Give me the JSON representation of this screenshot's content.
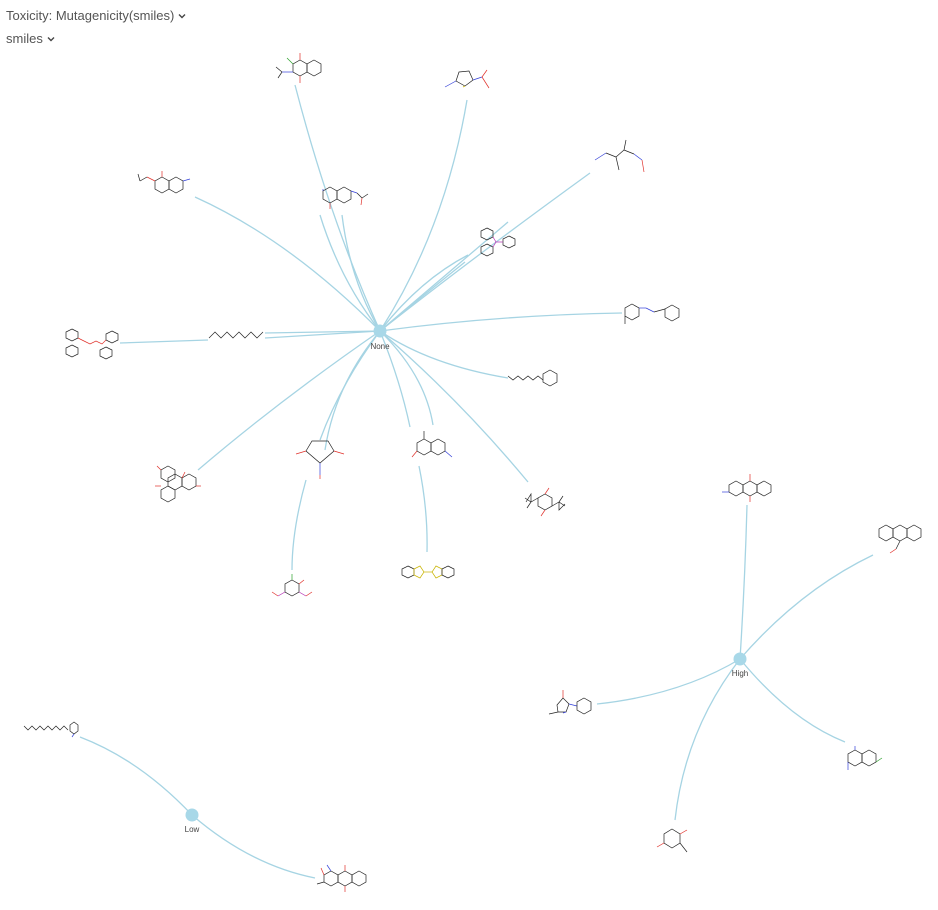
{
  "controls": {
    "color_by_label": "Toxicity: Mutagenicity(smiles)",
    "label_by_label": "smiles"
  },
  "colors": {
    "edge": "#a6d4e3",
    "hub": "#a8d8e8",
    "text": "#555555"
  },
  "hubs": [
    {
      "id": "none",
      "label": "None"
    },
    {
      "id": "high",
      "label": "High"
    },
    {
      "id": "low",
      "label": "Low"
    }
  ],
  "molecules": [
    {
      "id": "m1",
      "hub": "none",
      "heteroatoms": [
        "O",
        "O",
        "Cl",
        "N"
      ]
    },
    {
      "id": "m2",
      "hub": "none",
      "heteroatoms": [
        "N",
        "S",
        "N",
        "O",
        "O"
      ]
    },
    {
      "id": "m3",
      "hub": "none",
      "heteroatoms": [
        "N",
        "O",
        "N",
        "O"
      ]
    },
    {
      "id": "m4",
      "hub": "none",
      "heteroatoms": [
        "N",
        "O",
        "O",
        "N"
      ]
    },
    {
      "id": "m5",
      "hub": "none",
      "heteroatoms": [
        "N",
        "N",
        "O",
        "O"
      ]
    },
    {
      "id": "m6",
      "hub": "none",
      "heteroatoms": [
        "P"
      ]
    },
    {
      "id": "m7",
      "hub": "none",
      "heteroatoms": [
        "N",
        "N"
      ]
    },
    {
      "id": "m8",
      "hub": "none",
      "heteroatoms": [
        "O",
        "O"
      ]
    },
    {
      "id": "m9",
      "hub": "none",
      "heteroatoms": [
        "S"
      ]
    },
    {
      "id": "m10",
      "hub": "none",
      "heteroatoms": [
        "N"
      ]
    },
    {
      "id": "m11",
      "hub": "none",
      "heteroatoms": [
        "O",
        "O",
        "O",
        "O"
      ]
    },
    {
      "id": "m12",
      "hub": "none",
      "heteroatoms": [
        "O",
        "O",
        "N",
        "O"
      ]
    },
    {
      "id": "m13",
      "hub": "none",
      "heteroatoms": [
        "N",
        "N",
        "OH",
        "NH2"
      ]
    },
    {
      "id": "m14",
      "hub": "none",
      "heteroatoms": [
        "OH",
        "OH"
      ]
    },
    {
      "id": "m15",
      "hub": "none",
      "heteroatoms": [
        "Cl",
        "OH",
        "N",
        "O",
        "N",
        "O"
      ]
    },
    {
      "id": "m16",
      "hub": "none",
      "heteroatoms": [
        "N",
        "S",
        "S",
        "N"
      ]
    },
    {
      "id": "m17",
      "hub": "high",
      "heteroatoms": [
        "O",
        "O",
        "NH2"
      ]
    },
    {
      "id": "m18",
      "hub": "high",
      "heteroatoms": [
        "O"
      ]
    },
    {
      "id": "m19",
      "hub": "high",
      "heteroatoms": [
        "O",
        "N",
        "N"
      ]
    },
    {
      "id": "m20",
      "hub": "high",
      "heteroatoms": [
        "N",
        "Cl",
        "NH2"
      ]
    },
    {
      "id": "m21",
      "hub": "high",
      "heteroatoms": [
        "O",
        "O"
      ]
    },
    {
      "id": "m22",
      "hub": "low",
      "heteroatoms": [
        "N"
      ]
    },
    {
      "id": "m23",
      "hub": "low",
      "heteroatoms": [
        "O",
        "O",
        "O",
        "N"
      ]
    }
  ]
}
